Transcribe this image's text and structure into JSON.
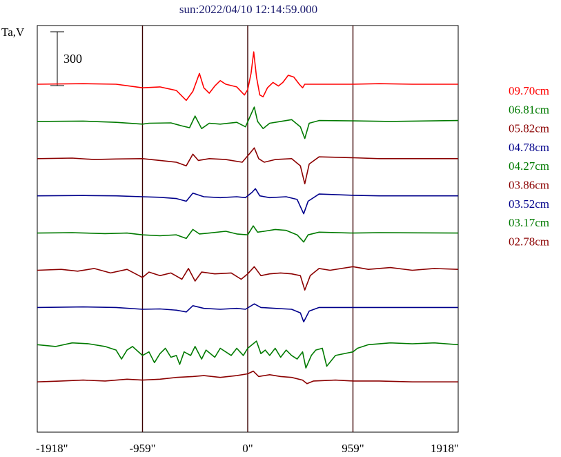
{
  "chart_data": {
    "type": "line",
    "title": "sun:2022/04/10 12:14:59.000",
    "ylabel": "Ta,V",
    "xlabel": "",
    "x_ticks": [
      "-1918\"",
      "-959\"",
      "0\"",
      "959\"",
      "1918\""
    ],
    "x_tick_values": [
      -1918,
      -959,
      0,
      959,
      1918
    ],
    "xlim": [
      -1918,
      1918
    ],
    "scale_bar": {
      "label": "300",
      "value": 300
    },
    "reference_lines_x": [
      -959,
      0,
      959
    ],
    "grid": false,
    "legend_position": "right",
    "series": [
      {
        "name": "09.70cm",
        "color": "#ff0000",
        "baseline": 0,
        "points": [
          [
            -1918,
            0
          ],
          [
            -1500,
            3
          ],
          [
            -1200,
            0
          ],
          [
            -1080,
            -10
          ],
          [
            -959,
            -20
          ],
          [
            -800,
            -15
          ],
          [
            -650,
            -35
          ],
          [
            -560,
            -90
          ],
          [
            -500,
            -40
          ],
          [
            -440,
            60
          ],
          [
            -400,
            -20
          ],
          [
            -350,
            -50
          ],
          [
            -300,
            -10
          ],
          [
            -250,
            20
          ],
          [
            -200,
            0
          ],
          [
            -100,
            -15
          ],
          [
            -30,
            -60
          ],
          [
            0,
            -30
          ],
          [
            30,
            60
          ],
          [
            55,
            180
          ],
          [
            80,
            40
          ],
          [
            110,
            -60
          ],
          [
            140,
            -70
          ],
          [
            180,
            -20
          ],
          [
            230,
            10
          ],
          [
            280,
            -10
          ],
          [
            320,
            10
          ],
          [
            370,
            50
          ],
          [
            420,
            40
          ],
          [
            470,
            0
          ],
          [
            500,
            -20
          ],
          [
            520,
            0
          ],
          [
            959,
            0
          ],
          [
            1200,
            3
          ],
          [
            1500,
            0
          ],
          [
            1918,
            0
          ]
        ]
      },
      {
        "name": "06.81cm",
        "color": "#007a00",
        "baseline": 1,
        "points": [
          [
            -1918,
            0
          ],
          [
            -1500,
            2
          ],
          [
            -1200,
            -5
          ],
          [
            -959,
            -15
          ],
          [
            -900,
            -10
          ],
          [
            -700,
            -8
          ],
          [
            -600,
            -25
          ],
          [
            -530,
            -35
          ],
          [
            -480,
            30
          ],
          [
            -420,
            -40
          ],
          [
            -350,
            -10
          ],
          [
            -250,
            -15
          ],
          [
            -100,
            -5
          ],
          [
            -20,
            -30
          ],
          [
            30,
            40
          ],
          [
            60,
            80
          ],
          [
            90,
            0
          ],
          [
            140,
            -40
          ],
          [
            200,
            -10
          ],
          [
            300,
            0
          ],
          [
            400,
            10
          ],
          [
            480,
            -30
          ],
          [
            520,
            -95
          ],
          [
            560,
            -10
          ],
          [
            650,
            5
          ],
          [
            959,
            3
          ],
          [
            1300,
            0
          ],
          [
            1918,
            5
          ]
        ]
      },
      {
        "name": "05.82cm",
        "color": "#8b0000",
        "baseline": 2,
        "points": [
          [
            -1918,
            0
          ],
          [
            -1600,
            3
          ],
          [
            -1400,
            -5
          ],
          [
            -1200,
            -2
          ],
          [
            -959,
            0
          ],
          [
            -800,
            -10
          ],
          [
            -650,
            -20
          ],
          [
            -560,
            -40
          ],
          [
            -500,
            25
          ],
          [
            -450,
            -10
          ],
          [
            -350,
            0
          ],
          [
            -200,
            -5
          ],
          [
            -50,
            -20
          ],
          [
            20,
            30
          ],
          [
            60,
            60
          ],
          [
            100,
            0
          ],
          [
            150,
            -20
          ],
          [
            250,
            -5
          ],
          [
            400,
            0
          ],
          [
            480,
            -40
          ],
          [
            520,
            -140
          ],
          [
            560,
            -30
          ],
          [
            650,
            10
          ],
          [
            959,
            5
          ],
          [
            1200,
            0
          ],
          [
            1918,
            0
          ]
        ]
      },
      {
        "name": "04.78cm",
        "color": "#00008b",
        "baseline": 3,
        "points": [
          [
            -1918,
            0
          ],
          [
            -1500,
            2
          ],
          [
            -1200,
            0
          ],
          [
            -959,
            -5
          ],
          [
            -800,
            -8
          ],
          [
            -650,
            -15
          ],
          [
            -560,
            -30
          ],
          [
            -500,
            15
          ],
          [
            -400,
            -5
          ],
          [
            -250,
            -10
          ],
          [
            -100,
            -5
          ],
          [
            -20,
            -10
          ],
          [
            40,
            20
          ],
          [
            70,
            40
          ],
          [
            110,
            0
          ],
          [
            200,
            -10
          ],
          [
            350,
            -5
          ],
          [
            450,
            -20
          ],
          [
            510,
            -100
          ],
          [
            550,
            -30
          ],
          [
            650,
            10
          ],
          [
            959,
            3
          ],
          [
            1200,
            0
          ],
          [
            1918,
            0
          ]
        ]
      },
      {
        "name": "04.27cm",
        "color": "#007a00",
        "baseline": 4,
        "points": [
          [
            -1918,
            0
          ],
          [
            -1600,
            2
          ],
          [
            -1300,
            -3
          ],
          [
            -1100,
            0
          ],
          [
            -959,
            -10
          ],
          [
            -800,
            -15
          ],
          [
            -650,
            -10
          ],
          [
            -560,
            -30
          ],
          [
            -500,
            20
          ],
          [
            -440,
            -5
          ],
          [
            -350,
            0
          ],
          [
            -200,
            10
          ],
          [
            -100,
            -5
          ],
          [
            0,
            -10
          ],
          [
            50,
            40
          ],
          [
            90,
            5
          ],
          [
            150,
            10
          ],
          [
            250,
            20
          ],
          [
            350,
            15
          ],
          [
            450,
            -10
          ],
          [
            510,
            -50
          ],
          [
            550,
            -10
          ],
          [
            650,
            5
          ],
          [
            959,
            0
          ],
          [
            1200,
            2
          ],
          [
            1918,
            0
          ]
        ]
      },
      {
        "name": "03.86cm",
        "color": "#8b0000",
        "baseline": 5,
        "points": [
          [
            -1918,
            0
          ],
          [
            -1700,
            5
          ],
          [
            -1550,
            -5
          ],
          [
            -1400,
            10
          ],
          [
            -1250,
            -15
          ],
          [
            -1100,
            5
          ],
          [
            -959,
            -40
          ],
          [
            -900,
            -10
          ],
          [
            -800,
            -30
          ],
          [
            -700,
            -15
          ],
          [
            -600,
            -50
          ],
          [
            -540,
            10
          ],
          [
            -480,
            -60
          ],
          [
            -420,
            -10
          ],
          [
            -300,
            -20
          ],
          [
            -150,
            -15
          ],
          [
            -60,
            -50
          ],
          [
            0,
            -20
          ],
          [
            60,
            20
          ],
          [
            120,
            -30
          ],
          [
            200,
            -20
          ],
          [
            300,
            -15
          ],
          [
            400,
            -20
          ],
          [
            480,
            -30
          ],
          [
            520,
            -110
          ],
          [
            570,
            -30
          ],
          [
            650,
            10
          ],
          [
            750,
            0
          ],
          [
            959,
            20
          ],
          [
            1100,
            5
          ],
          [
            1300,
            15
          ],
          [
            1500,
            0
          ],
          [
            1700,
            10
          ],
          [
            1918,
            5
          ]
        ]
      },
      {
        "name": "03.52cm",
        "color": "#00008b",
        "baseline": 6,
        "points": [
          [
            -1918,
            0
          ],
          [
            -1500,
            3
          ],
          [
            -1200,
            0
          ],
          [
            -959,
            -10
          ],
          [
            -800,
            -8
          ],
          [
            -650,
            -15
          ],
          [
            -560,
            -25
          ],
          [
            -500,
            10
          ],
          [
            -400,
            -5
          ],
          [
            -250,
            -10
          ],
          [
            -100,
            -5
          ],
          [
            -20,
            -10
          ],
          [
            60,
            20
          ],
          [
            120,
            0
          ],
          [
            250,
            -5
          ],
          [
            400,
            -10
          ],
          [
            480,
            -30
          ],
          [
            510,
            -80
          ],
          [
            560,
            -20
          ],
          [
            650,
            0
          ],
          [
            959,
            0
          ],
          [
            1300,
            0
          ],
          [
            1918,
            0
          ]
        ]
      },
      {
        "name": "03.17cm",
        "color": "#007a00",
        "baseline": 7,
        "points": [
          [
            -1918,
            0
          ],
          [
            -1750,
            -10
          ],
          [
            -1600,
            10
          ],
          [
            -1450,
            5
          ],
          [
            -1300,
            -10
          ],
          [
            -1200,
            -30
          ],
          [
            -1150,
            -80
          ],
          [
            -1100,
            -30
          ],
          [
            -1050,
            -10
          ],
          [
            -959,
            -60
          ],
          [
            -900,
            -40
          ],
          [
            -850,
            -100
          ],
          [
            -800,
            -50
          ],
          [
            -750,
            -20
          ],
          [
            -700,
            -70
          ],
          [
            -650,
            -60
          ],
          [
            -620,
            -110
          ],
          [
            -580,
            -40
          ],
          [
            -520,
            -60
          ],
          [
            -480,
            -10
          ],
          [
            -420,
            -80
          ],
          [
            -380,
            -30
          ],
          [
            -300,
            -70
          ],
          [
            -250,
            -20
          ],
          [
            -150,
            -60
          ],
          [
            -100,
            -20
          ],
          [
            -40,
            -60
          ],
          [
            0,
            -20
          ],
          [
            40,
            0
          ],
          [
            80,
            20
          ],
          [
            120,
            -50
          ],
          [
            160,
            -30
          ],
          [
            200,
            -60
          ],
          [
            250,
            -20
          ],
          [
            300,
            -70
          ],
          [
            350,
            -30
          ],
          [
            400,
            -60
          ],
          [
            450,
            -80
          ],
          [
            500,
            -40
          ],
          [
            530,
            -130
          ],
          [
            580,
            -60
          ],
          [
            620,
            -30
          ],
          [
            680,
            -20
          ],
          [
            720,
            -120
          ],
          [
            800,
            -60
          ],
          [
            959,
            -40
          ],
          [
            1000,
            -20
          ],
          [
            1100,
            0
          ],
          [
            1300,
            10
          ],
          [
            1500,
            5
          ],
          [
            1700,
            10
          ],
          [
            1918,
            0
          ]
        ]
      },
      {
        "name": "02.78cm",
        "color": "#8b0000",
        "baseline": 8,
        "points": [
          [
            -1918,
            0
          ],
          [
            -1700,
            5
          ],
          [
            -1500,
            10
          ],
          [
            -1300,
            5
          ],
          [
            -1100,
            15
          ],
          [
            -959,
            10
          ],
          [
            -800,
            15
          ],
          [
            -650,
            25
          ],
          [
            -500,
            30
          ],
          [
            -400,
            35
          ],
          [
            -250,
            25
          ],
          [
            -100,
            35
          ],
          [
            0,
            45
          ],
          [
            50,
            60
          ],
          [
            100,
            30
          ],
          [
            200,
            40
          ],
          [
            300,
            30
          ],
          [
            400,
            25
          ],
          [
            500,
            10
          ],
          [
            540,
            -10
          ],
          [
            600,
            5
          ],
          [
            800,
            10
          ],
          [
            959,
            5
          ],
          [
            1200,
            5
          ],
          [
            1500,
            0
          ],
          [
            1918,
            0
          ]
        ]
      }
    ]
  }
}
